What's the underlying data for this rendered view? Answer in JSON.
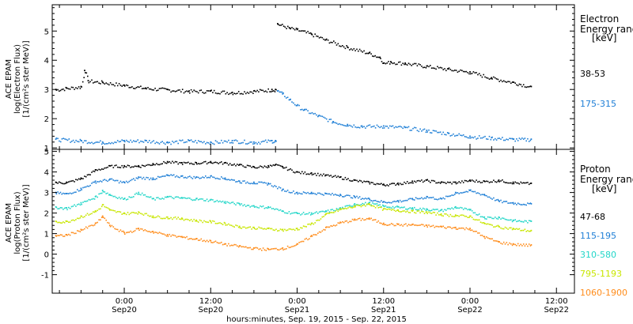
{
  "xaxis": {
    "title": "hours:minutes, Sep. 19, 2015 - Sep. 22, 2015",
    "range_hours_from_sep19_00": [
      14.0,
      86.5
    ],
    "ticks": [
      {
        "hour": 24,
        "time": "0:00",
        "date": "Sep20"
      },
      {
        "hour": 36,
        "time": "12:00",
        "date": "Sep20"
      },
      {
        "hour": 48,
        "time": "0:00",
        "date": "Sep21"
      },
      {
        "hour": 60,
        "time": "12:00",
        "date": "Sep21"
      },
      {
        "hour": 72,
        "time": "0:00",
        "date": "Sep22"
      },
      {
        "hour": 84,
        "time": "12:00",
        "date": "Sep22"
      }
    ]
  },
  "panels": {
    "electron": {
      "ylabel_lines": [
        "ACE EPAM",
        "log(Electron Flux)",
        "[1/(cm²s ster MeV)]"
      ],
      "legend_title": [
        "Electron",
        "Energy ranges",
        "[keV]"
      ],
      "yticks": [
        "1",
        "2",
        "3",
        "4",
        "5"
      ],
      "channels": [
        {
          "label": "38-53",
          "color": "#000000"
        },
        {
          "label": "175-315",
          "color": "#1f7fd6"
        }
      ]
    },
    "proton": {
      "ylabel_lines": [
        "ACE EPAM",
        "log(Proton Flux)",
        "[1/(cm²s ster MeV)]"
      ],
      "legend_title": [
        "Proton",
        "Energy ranges",
        "[keV]"
      ],
      "yticks": [
        "-1",
        "0",
        "1",
        "2",
        "3",
        "4",
        "5"
      ],
      "channels": [
        {
          "label": "47-68",
          "color": "#000000"
        },
        {
          "label": "115-195",
          "color": "#1f7fd6"
        },
        {
          "label": "310-580",
          "color": "#22d6c8"
        },
        {
          "label": "795-1193",
          "color": "#c8e600"
        },
        {
          "label": "1060-1900",
          "color": "#ff8c1a"
        }
      ]
    }
  },
  "chart_data": [
    {
      "type": "scatter",
      "panel": "electron",
      "xlabel": "hours:minutes, Sep. 19, 2015 - Sep. 22, 2015",
      "ylabel": "ACE EPAM log(Electron Flux) [1/(cm²s ster MeV)]",
      "ylim": [
        0.95,
        5.9
      ],
      "series": [
        {
          "name": "38-53",
          "color": "#000000",
          "points": [
            [
              14.5,
              3.0
            ],
            [
              16,
              3.05
            ],
            [
              18,
              3.1
            ],
            [
              18.5,
              3.65
            ],
            [
              19,
              3.3
            ],
            [
              21,
              3.25
            ],
            [
              24,
              3.15
            ],
            [
              27,
              3.05
            ],
            [
              30,
              3.0
            ],
            [
              33,
              2.95
            ],
            [
              36,
              2.95
            ],
            [
              39,
              2.9
            ],
            [
              42,
              2.95
            ],
            [
              44.5,
              3.0
            ],
            [
              45,
              3.0
            ],
            [
              45.3,
              5.25
            ],
            [
              47,
              5.1
            ],
            [
              48,
              5.05
            ],
            [
              50,
              4.9
            ],
            [
              52,
              4.7
            ],
            [
              55,
              4.45
            ],
            [
              58,
              4.25
            ],
            [
              59.5,
              4.1
            ],
            [
              60,
              3.9
            ],
            [
              61,
              3.95
            ],
            [
              63,
              3.9
            ],
            [
              66,
              3.8
            ],
            [
              69,
              3.7
            ],
            [
              72,
              3.6
            ],
            [
              75,
              3.4
            ],
            [
              78,
              3.25
            ],
            [
              80.5,
              3.1
            ]
          ]
        },
        {
          "name": "175-315",
          "color": "#1f7fd6",
          "points": [
            [
              14.5,
              1.3
            ],
            [
              18,
              1.25
            ],
            [
              21,
              1.2
            ],
            [
              24,
              1.25
            ],
            [
              27,
              1.25
            ],
            [
              30,
              1.2
            ],
            [
              33,
              1.25
            ],
            [
              36,
              1.2
            ],
            [
              39,
              1.25
            ],
            [
              42,
              1.2
            ],
            [
              44.5,
              1.25
            ],
            [
              45,
              1.25
            ],
            [
              45.3,
              2.95
            ],
            [
              46,
              2.85
            ],
            [
              47,
              2.65
            ],
            [
              48,
              2.45
            ],
            [
              49,
              2.3
            ],
            [
              51,
              2.1
            ],
            [
              53,
              1.9
            ],
            [
              55,
              1.8
            ],
            [
              57,
              1.75
            ],
            [
              60,
              1.75
            ],
            [
              63,
              1.7
            ],
            [
              66,
              1.6
            ],
            [
              69,
              1.5
            ],
            [
              72,
              1.4
            ],
            [
              75,
              1.35
            ],
            [
              78,
              1.3
            ],
            [
              80.5,
              1.3
            ]
          ]
        }
      ]
    },
    {
      "type": "scatter",
      "panel": "proton",
      "xlabel": "hours:minutes, Sep. 19, 2015 - Sep. 22, 2015",
      "ylabel": "ACE EPAM log(Proton Flux) [1/(cm²s ster MeV)]",
      "ylim": [
        -1.9,
        5.1
      ],
      "series": [
        {
          "name": "47-68",
          "color": "#000000",
          "points": [
            [
              14.5,
              3.5
            ],
            [
              16,
              3.5
            ],
            [
              18,
              3.7
            ],
            [
              20,
              4.1
            ],
            [
              22,
              4.3
            ],
            [
              24,
              4.3
            ],
            [
              26,
              4.3
            ],
            [
              28,
              4.4
            ],
            [
              30,
              4.5
            ],
            [
              32,
              4.45
            ],
            [
              34,
              4.45
            ],
            [
              36,
              4.5
            ],
            [
              38,
              4.45
            ],
            [
              40,
              4.35
            ],
            [
              42,
              4.25
            ],
            [
              44,
              4.3
            ],
            [
              45,
              4.35
            ],
            [
              46,
              4.25
            ],
            [
              48,
              4.0
            ],
            [
              50,
              3.95
            ],
            [
              52,
              3.85
            ],
            [
              54,
              3.75
            ],
            [
              56,
              3.6
            ],
            [
              58,
              3.5
            ],
            [
              60,
              3.4
            ],
            [
              62,
              3.45
            ],
            [
              64,
              3.55
            ],
            [
              66,
              3.6
            ],
            [
              68,
              3.5
            ],
            [
              70,
              3.5
            ],
            [
              72,
              3.6
            ],
            [
              74,
              3.55
            ],
            [
              76,
              3.6
            ],
            [
              78,
              3.5
            ],
            [
              80.5,
              3.45
            ]
          ]
        },
        {
          "name": "115-195",
          "color": "#1f7fd6",
          "points": [
            [
              14.5,
              3.0
            ],
            [
              16,
              2.95
            ],
            [
              18,
              3.2
            ],
            [
              20,
              3.55
            ],
            [
              22,
              3.65
            ],
            [
              24,
              3.5
            ],
            [
              26,
              3.75
            ],
            [
              28,
              3.7
            ],
            [
              30,
              3.85
            ],
            [
              32,
              3.8
            ],
            [
              34,
              3.75
            ],
            [
              36,
              3.8
            ],
            [
              38,
              3.7
            ],
            [
              40,
              3.55
            ],
            [
              42,
              3.5
            ],
            [
              44,
              3.45
            ],
            [
              46,
              3.15
            ],
            [
              48,
              3.0
            ],
            [
              50,
              3.0
            ],
            [
              52,
              2.95
            ],
            [
              54,
              2.9
            ],
            [
              56,
              2.8
            ],
            [
              58,
              2.7
            ],
            [
              60,
              2.55
            ],
            [
              62,
              2.6
            ],
            [
              64,
              2.7
            ],
            [
              66,
              2.8
            ],
            [
              68,
              2.7
            ],
            [
              70,
              3.0
            ],
            [
              72,
              3.1
            ],
            [
              74,
              2.9
            ],
            [
              76,
              2.6
            ],
            [
              78,
              2.5
            ],
            [
              80.5,
              2.45
            ]
          ]
        },
        {
          "name": "310-580",
          "color": "#22d6c8",
          "points": [
            [
              14.5,
              2.3
            ],
            [
              16,
              2.25
            ],
            [
              18,
              2.5
            ],
            [
              20,
              2.8
            ],
            [
              21,
              3.1
            ],
            [
              22,
              2.9
            ],
            [
              24,
              2.7
            ],
            [
              26,
              3.0
            ],
            [
              28,
              2.7
            ],
            [
              30,
              2.8
            ],
            [
              32,
              2.75
            ],
            [
              34,
              2.7
            ],
            [
              36,
              2.65
            ],
            [
              38,
              2.55
            ],
            [
              40,
              2.45
            ],
            [
              42,
              2.35
            ],
            [
              44,
              2.3
            ],
            [
              46,
              2.1
            ],
            [
              48,
              2.0
            ],
            [
              50,
              2.0
            ],
            [
              52,
              2.1
            ],
            [
              54,
              2.25
            ],
            [
              56,
              2.45
            ],
            [
              58,
              2.5
            ],
            [
              60,
              2.35
            ],
            [
              62,
              2.3
            ],
            [
              64,
              2.25
            ],
            [
              66,
              2.2
            ],
            [
              68,
              2.15
            ],
            [
              70,
              2.3
            ],
            [
              72,
              2.15
            ],
            [
              74,
              1.8
            ],
            [
              76,
              1.8
            ],
            [
              78,
              1.65
            ],
            [
              80.5,
              1.6
            ]
          ]
        },
        {
          "name": "795-1193",
          "color": "#c8e600",
          "points": [
            [
              14.5,
              1.6
            ],
            [
              16,
              1.6
            ],
            [
              18,
              1.85
            ],
            [
              20,
              2.1
            ],
            [
              21,
              2.4
            ],
            [
              22,
              2.15
            ],
            [
              24,
              2.0
            ],
            [
              26,
              2.05
            ],
            [
              28,
              1.85
            ],
            [
              30,
              1.8
            ],
            [
              32,
              1.75
            ],
            [
              34,
              1.65
            ],
            [
              36,
              1.6
            ],
            [
              38,
              1.5
            ],
            [
              40,
              1.35
            ],
            [
              42,
              1.3
            ],
            [
              44,
              1.25
            ],
            [
              46,
              1.2
            ],
            [
              48,
              1.25
            ],
            [
              50,
              1.5
            ],
            [
              52,
              1.95
            ],
            [
              54,
              2.2
            ],
            [
              56,
              2.35
            ],
            [
              58,
              2.45
            ],
            [
              60,
              2.2
            ],
            [
              62,
              2.15
            ],
            [
              64,
              2.1
            ],
            [
              66,
              2.05
            ],
            [
              68,
              1.95
            ],
            [
              70,
              1.9
            ],
            [
              72,
              1.85
            ],
            [
              74,
              1.5
            ],
            [
              76,
              1.35
            ],
            [
              78,
              1.25
            ],
            [
              80.5,
              1.15
            ]
          ]
        },
        {
          "name": "1060-1900",
          "color": "#ff8c1a",
          "points": [
            [
              14.5,
              0.9
            ],
            [
              16,
              0.95
            ],
            [
              18,
              1.2
            ],
            [
              20,
              1.5
            ],
            [
              21,
              1.85
            ],
            [
              22,
              1.4
            ],
            [
              24,
              1.05
            ],
            [
              26,
              1.25
            ],
            [
              28,
              1.1
            ],
            [
              30,
              0.95
            ],
            [
              32,
              0.85
            ],
            [
              34,
              0.75
            ],
            [
              36,
              0.65
            ],
            [
              38,
              0.5
            ],
            [
              40,
              0.4
            ],
            [
              42,
              0.3
            ],
            [
              44,
              0.25
            ],
            [
              46,
              0.3
            ],
            [
              48,
              0.5
            ],
            [
              50,
              0.9
            ],
            [
              52,
              1.3
            ],
            [
              54,
              1.55
            ],
            [
              56,
              1.7
            ],
            [
              58,
              1.75
            ],
            [
              60,
              1.5
            ],
            [
              62,
              1.45
            ],
            [
              64,
              1.45
            ],
            [
              66,
              1.4
            ],
            [
              68,
              1.35
            ],
            [
              70,
              1.3
            ],
            [
              72,
              1.25
            ],
            [
              74,
              0.85
            ],
            [
              76,
              0.6
            ],
            [
              78,
              0.5
            ],
            [
              80.5,
              0.45
            ]
          ]
        }
      ]
    }
  ]
}
